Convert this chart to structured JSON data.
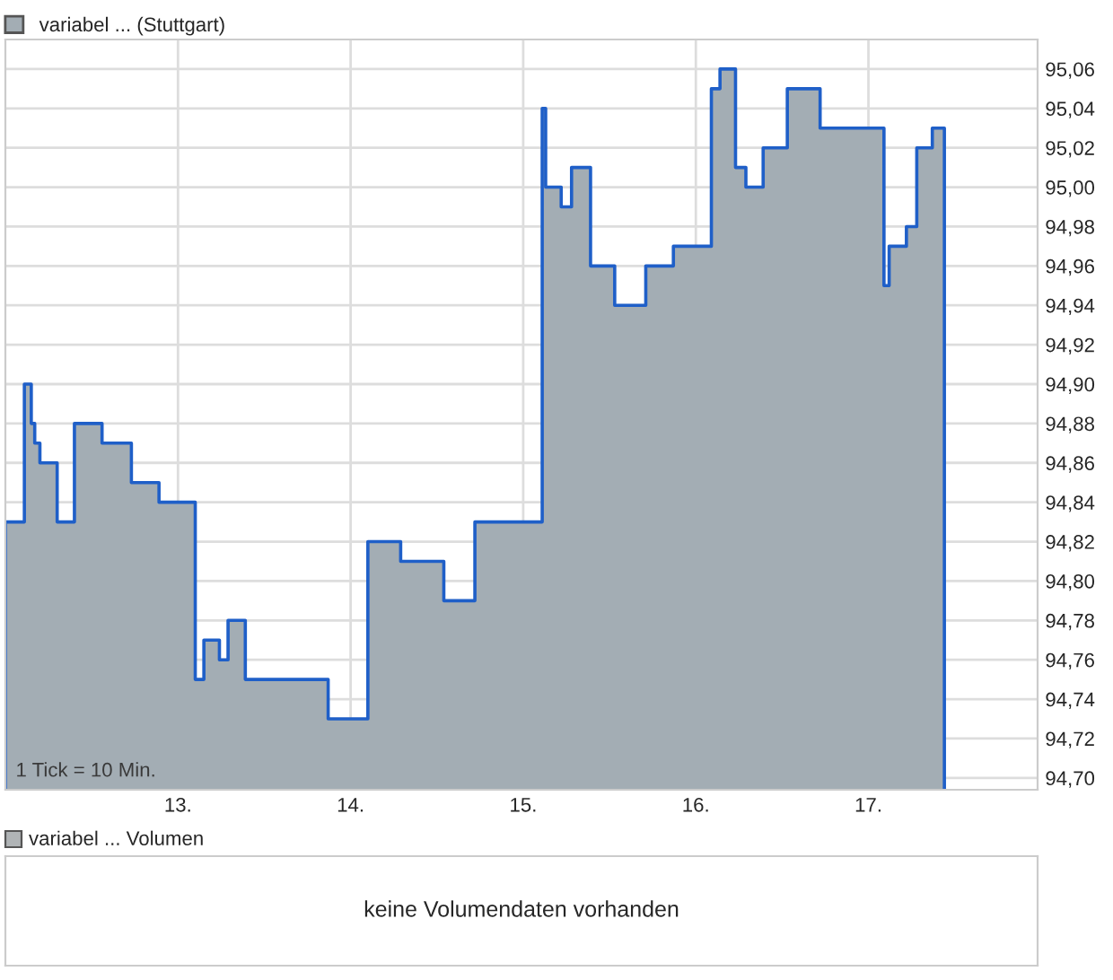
{
  "chart_data": [
    {
      "type": "area",
      "x": [
        12.0,
        12.11,
        12.15,
        12.17,
        12.2,
        12.3,
        12.4,
        12.56,
        12.73,
        12.89,
        13.1,
        13.15,
        13.24,
        13.29,
        13.39,
        13.87,
        14.1,
        14.29,
        14.54,
        14.72,
        15.11,
        15.13,
        15.22,
        15.28,
        15.39,
        15.53,
        15.71,
        15.87,
        16.09,
        16.14,
        16.23,
        16.29,
        16.39,
        16.53,
        16.72,
        17.09,
        17.12,
        17.22,
        17.28,
        17.37,
        17.44
      ],
      "series": [
        {
          "name": "variabel ... (Stuttgart)",
          "color": "#a3adb4",
          "values": [
            94.83,
            94.9,
            94.88,
            94.87,
            94.86,
            94.83,
            94.88,
            94.87,
            94.85,
            94.84,
            94.75,
            94.77,
            94.76,
            94.78,
            94.75,
            94.73,
            94.82,
            94.81,
            94.79,
            94.83,
            95.04,
            95.0,
            94.99,
            95.01,
            94.96,
            94.94,
            94.96,
            94.97,
            95.05,
            95.06,
            95.01,
            95.0,
            95.02,
            95.05,
            95.03,
            94.95,
            94.97,
            94.98,
            95.02,
            95.03,
            95.03
          ]
        }
      ],
      "xlim": [
        12.0,
        17.98
      ],
      "xticks": [
        {
          "value": 13,
          "label": "13."
        },
        {
          "value": 14,
          "label": "14."
        },
        {
          "value": 15,
          "label": "15."
        },
        {
          "value": 16,
          "label": "16."
        },
        {
          "value": 17,
          "label": "17."
        }
      ],
      "ylim": [
        94.694,
        95.075
      ],
      "yticks": [
        {
          "value": 94.7,
          "label": "94,70"
        },
        {
          "value": 94.72,
          "label": "94,72"
        },
        {
          "value": 94.74,
          "label": "94,74"
        },
        {
          "value": 94.76,
          "label": "94,76"
        },
        {
          "value": 94.78,
          "label": "94,78"
        },
        {
          "value": 94.8,
          "label": "94,80"
        },
        {
          "value": 94.82,
          "label": "94,82"
        },
        {
          "value": 94.84,
          "label": "94,84"
        },
        {
          "value": 94.86,
          "label": "94,86"
        },
        {
          "value": 94.88,
          "label": "94,88"
        },
        {
          "value": 94.9,
          "label": "94,90"
        },
        {
          "value": 94.92,
          "label": "94,92"
        },
        {
          "value": 94.94,
          "label": "94,94"
        },
        {
          "value": 94.96,
          "label": "94,96"
        },
        {
          "value": 94.98,
          "label": "94,98"
        },
        {
          "value": 95.0,
          "label": "95,00"
        },
        {
          "value": 95.02,
          "label": "95,02"
        },
        {
          "value": 95.04,
          "label": "95,04"
        },
        {
          "value": 95.06,
          "label": "95,06"
        }
      ],
      "grid": true,
      "legend": "top left",
      "annotations": [
        "1 Tick = 10 Min."
      ]
    },
    {
      "type": "other",
      "title": "variabel ... Volumen",
      "annotations": [
        "keine Volumendaten vorhanden"
      ]
    }
  ]
}
